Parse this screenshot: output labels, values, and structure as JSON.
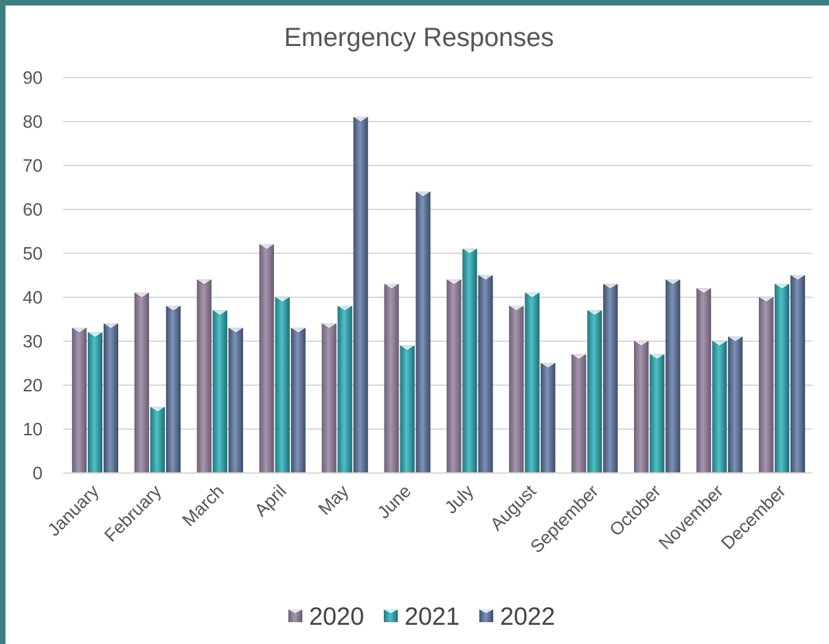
{
  "chart_data": {
    "type": "bar",
    "title": "Emergency Responses",
    "xlabel": "",
    "ylabel": "",
    "ylim": [
      0,
      90
    ],
    "yticks": [
      0,
      10,
      20,
      30,
      40,
      50,
      60,
      70,
      80,
      90
    ],
    "grid": true,
    "legend_position": "bottom",
    "categories": [
      "January",
      "February",
      "March",
      "April",
      "May",
      "June",
      "July",
      "August",
      "September",
      "October",
      "November",
      "December"
    ],
    "series": [
      {
        "name": "2020",
        "color": "#8e7d96",
        "values": [
          33,
          41,
          44,
          52,
          34,
          43,
          44,
          38,
          27,
          30,
          42,
          40
        ]
      },
      {
        "name": "2021",
        "color": "#2f9ba3",
        "values": [
          32,
          15,
          37,
          40,
          38,
          29,
          51,
          41,
          37,
          27,
          30,
          43
        ]
      },
      {
        "name": "2022",
        "color": "#5b6f94",
        "values": [
          34,
          38,
          33,
          33,
          81,
          64,
          45,
          25,
          43,
          44,
          31,
          45
        ]
      }
    ]
  }
}
